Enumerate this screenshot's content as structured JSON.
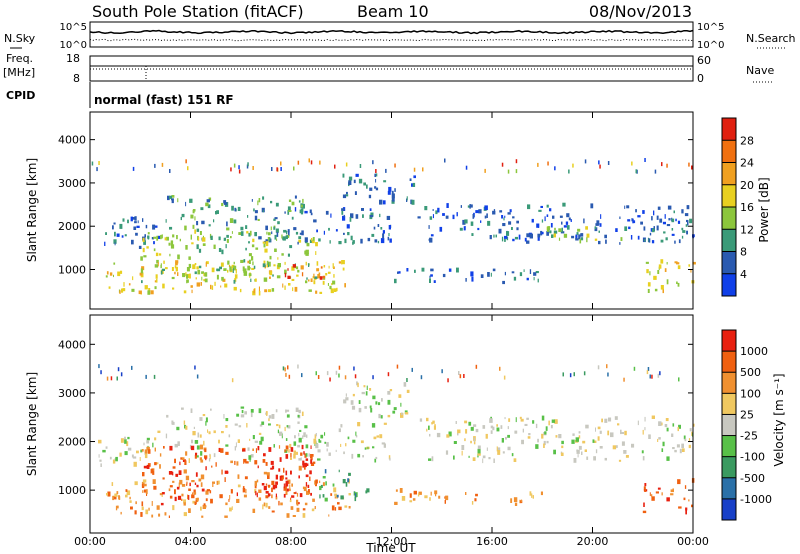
{
  "header": {
    "station": "South Pole Station (fitACF)",
    "beam": "Beam 10",
    "date": "08/Nov/2013"
  },
  "top_strips": {
    "nsky_label": "N.Sky",
    "nsky_ticks": [
      "10^5",
      "10^0"
    ],
    "nsearch_label": "N.Search",
    "nsearch_ticks": [
      "10^5",
      "10^0"
    ],
    "freq_label": "Freq.",
    "freq_unit": "[MHz]",
    "freq_ticks": [
      "18",
      "8"
    ],
    "nave_label": "Nave",
    "nave_ticks": [
      "60",
      "0"
    ],
    "cpid_label": "CPID",
    "cpid_text": "normal (fast) 151 RF"
  },
  "chart_data": [
    {
      "type": "heatmap",
      "name": "power-panel",
      "title": "",
      "xlabel": "Time UT",
      "ylabel": "Slant Range [km]",
      "xlim": [
        0,
        24
      ],
      "ylim": [
        180,
        4500
      ],
      "x_ticks": [
        "00:00",
        "04:00",
        "08:00",
        "12:00",
        "16:00",
        "20:00",
        "00:00"
      ],
      "y_ticks": [
        "1000",
        "2000",
        "3000",
        "4000"
      ],
      "colorbar": {
        "label": "Power [dB]",
        "ticks": [
          "4",
          "8",
          "12",
          "16",
          "20",
          "24",
          "28"
        ],
        "colors": [
          "#1040e8",
          "#2a5ab0",
          "#3a9a78",
          "#8cc63c",
          "#e8d020",
          "#f0a020",
          "#f07010",
          "#e02010"
        ]
      },
      "bands": [
        {
          "t0": 0.3,
          "t1": 3.0,
          "r0": 1500,
          "r1": 2200,
          "level": 1
        },
        {
          "t0": 3.0,
          "t1": 8.5,
          "r0": 1600,
          "r1": 2700,
          "level": 2
        },
        {
          "t0": 0.6,
          "t1": 10.3,
          "r0": 450,
          "r1": 1200,
          "level": 4
        },
        {
          "t0": 2.0,
          "t1": 9.0,
          "r0": 700,
          "r1": 1900,
          "level": 3
        },
        {
          "t0": 7.0,
          "t1": 9.3,
          "r0": 800,
          "r1": 1100,
          "level": 6
        },
        {
          "t0": 8.0,
          "t1": 12.0,
          "r0": 1600,
          "r1": 2400,
          "level": 1
        },
        {
          "t0": 10.0,
          "t1": 13.0,
          "r0": 2500,
          "r1": 3200,
          "level": 1
        },
        {
          "t0": 12.0,
          "t1": 18.0,
          "r0": 700,
          "r1": 1000,
          "level": 1
        },
        {
          "t0": 13.0,
          "t1": 24.0,
          "r0": 1600,
          "r1": 2500,
          "level": 1
        },
        {
          "t0": 18.0,
          "t1": 21.5,
          "r0": 1650,
          "r1": 2000,
          "level": 3
        },
        {
          "t0": 22.0,
          "t1": 24.0,
          "r0": 500,
          "r1": 1200,
          "level": 4
        }
      ]
    },
    {
      "type": "heatmap",
      "name": "velocity-panel",
      "title": "",
      "xlabel": "Time UT",
      "ylabel": "Slant Range [km]",
      "xlim": [
        0,
        24
      ],
      "ylim": [
        180,
        4500
      ],
      "x_ticks": [
        "00:00",
        "04:00",
        "08:00",
        "12:00",
        "16:00",
        "20:00",
        "00:00"
      ],
      "y_ticks": [
        "1000",
        "2000",
        "3000",
        "4000"
      ],
      "colorbar": {
        "label": "Velocity [m s⁻¹]",
        "ticks": [
          "1000",
          "500",
          "100",
          "25",
          "-25",
          "-100",
          "-500",
          "-1000"
        ],
        "colors": [
          "#1840c8",
          "#2a70a8",
          "#3a9a60",
          "#58c048",
          "#c8c8c0",
          "#f0c860",
          "#f09030",
          "#f06010",
          "#e82010"
        ]
      },
      "bands": [
        {
          "t0": 0.3,
          "t1": 3.0,
          "r0": 1500,
          "r1": 2200,
          "level": 4
        },
        {
          "t0": 3.0,
          "t1": 8.5,
          "r0": 1600,
          "r1": 2700,
          "level": 4
        },
        {
          "t0": 0.6,
          "t1": 10.3,
          "r0": 450,
          "r1": 1200,
          "level": 6
        },
        {
          "t0": 2.0,
          "t1": 9.0,
          "r0": 700,
          "r1": 1900,
          "level": 7
        },
        {
          "t0": 6.5,
          "t1": 8.8,
          "r0": 800,
          "r1": 1900,
          "level": 8
        },
        {
          "t0": 8.0,
          "t1": 12.0,
          "r0": 1600,
          "r1": 2400,
          "level": 4
        },
        {
          "t0": 10.0,
          "t1": 13.0,
          "r0": 2500,
          "r1": 3200,
          "level": 4
        },
        {
          "t0": 12.0,
          "t1": 18.0,
          "r0": 700,
          "r1": 1000,
          "level": 6
        },
        {
          "t0": 13.0,
          "t1": 24.0,
          "r0": 1600,
          "r1": 2500,
          "level": 4
        },
        {
          "t0": 9.0,
          "t1": 11.0,
          "r0": 800,
          "r1": 1400,
          "level": 2
        },
        {
          "t0": 22.0,
          "t1": 24.0,
          "r0": 500,
          "r1": 1200,
          "level": 7
        }
      ]
    }
  ]
}
